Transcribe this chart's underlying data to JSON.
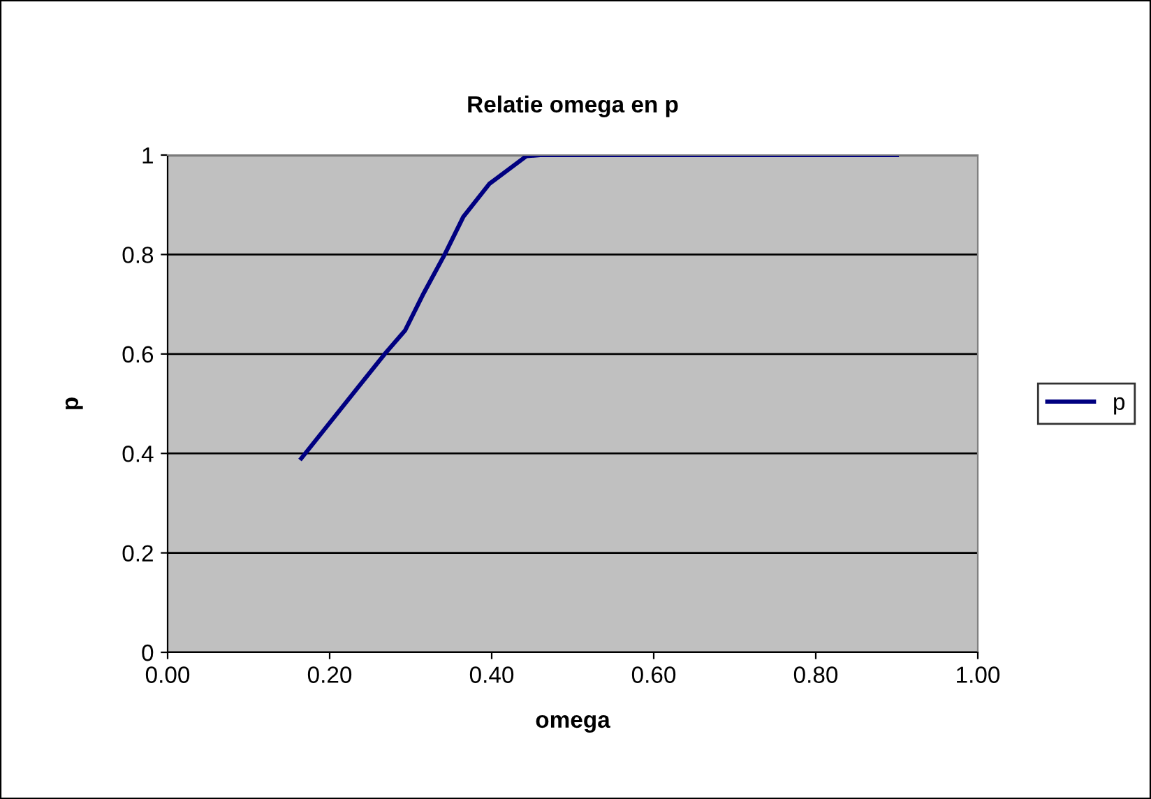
{
  "chart_data": {
    "type": "line",
    "title": "Relatie omega en p",
    "xlabel": "omega",
    "ylabel": "p",
    "series": [
      {
        "name": "p",
        "color": "#000080",
        "x": [
          0.165,
          0.213,
          0.268,
          0.293,
          0.316,
          0.342,
          0.365,
          0.397,
          0.443,
          0.46,
          0.5,
          0.6,
          0.7,
          0.8,
          0.9
        ],
        "values": [
          0.39,
          0.488,
          0.6,
          0.647,
          0.722,
          0.8,
          0.876,
          0.942,
          0.998,
          1,
          1,
          1,
          1,
          1,
          1
        ]
      }
    ],
    "xlim": [
      0,
      1
    ],
    "xticks": [
      {
        "value": 0,
        "label": "0.00"
      },
      {
        "value": 0.2,
        "label": "0.20"
      },
      {
        "value": 0.4,
        "label": "0.40"
      },
      {
        "value": 0.6,
        "label": "0.60"
      },
      {
        "value": 0.8,
        "label": "0.80"
      },
      {
        "value": 1,
        "label": "1.00"
      }
    ],
    "ylim": [
      0,
      1
    ],
    "yticks": [
      0,
      0.2,
      0.4,
      0.6,
      0.8,
      1
    ],
    "grid": "y",
    "legend": "right",
    "marker": "none",
    "line_style": "solid"
  }
}
